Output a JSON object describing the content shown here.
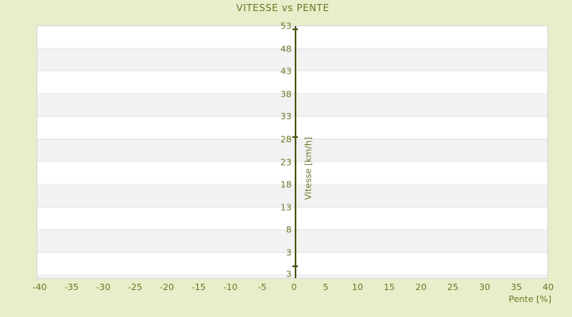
{
  "title": "VITESSE vs PENTE",
  "chart_data": {
    "type": "scatter",
    "title": "VITESSE vs PENTE",
    "xlabel": "Pente [%]",
    "ylabel": "Vitesse [km/h]",
    "x_ticks": [
      -40,
      -35,
      -30,
      -25,
      -20,
      -15,
      -10,
      -5,
      0,
      5,
      10,
      15,
      20,
      25,
      30,
      35,
      40
    ],
    "y_ticks": [
      53,
      48,
      43,
      38,
      33,
      28,
      23,
      18,
      13,
      8,
      3
    ],
    "y_axis_bottom_label": "3",
    "xlim": [
      -40.5,
      40
    ],
    "ylim": [
      -2.8,
      53
    ],
    "grid": "alternating-horizontal-bands",
    "legend": "none",
    "series": [],
    "zero_axis_marks_y_values": [
      52.3,
      28.5,
      0.1
    ],
    "zero_axis_x_value": 0,
    "colors": {
      "background": "#e9edca",
      "band_light": "#ffffff",
      "band_dark": "#f2f2f2",
      "band_separator": "#e5e5e5",
      "plot_border": "#d6d6d6",
      "text": "#6b7626",
      "axis_line": "#4b5408"
    }
  }
}
